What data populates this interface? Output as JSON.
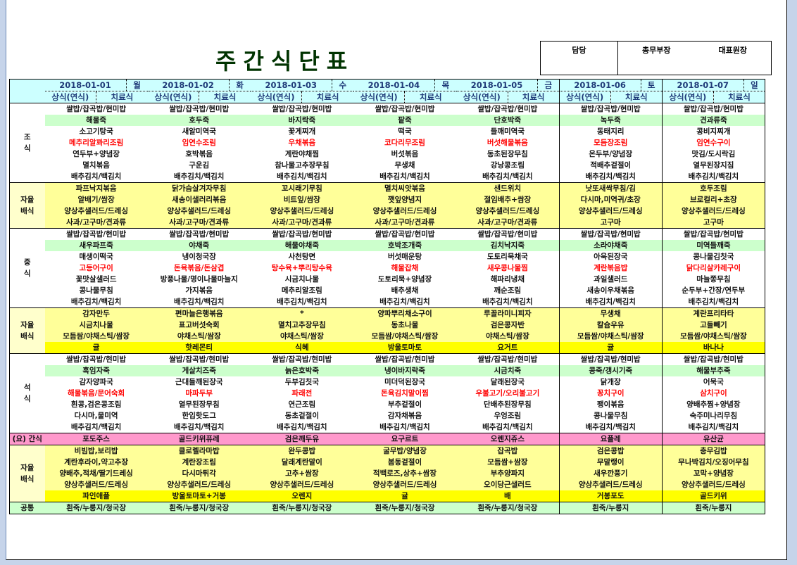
{
  "title": "주간식단표",
  "approval": {
    "labels": [
      "담당",
      "총무부장",
      "대표원장"
    ]
  },
  "colors": {
    "header": "#ccffff",
    "porridge": "#ccffcc",
    "self_serve": "#ffff99",
    "fruit": "#ffff00",
    "night_snack": "#ff99cc",
    "common": "#ccffcc",
    "main_dish_text": "#ff0000",
    "title": "#003300"
  },
  "days": [
    {
      "date": "2018-01-01",
      "weekday": "월"
    },
    {
      "date": "2018-01-02",
      "weekday": "화"
    },
    {
      "date": "2018-01-03",
      "weekday": "수"
    },
    {
      "date": "2018-01-04",
      "weekday": "목"
    },
    {
      "date": "2018-01-05",
      "weekday": "금"
    },
    {
      "date": "2018-01-06",
      "weekday": "토"
    },
    {
      "date": "2018-01-07",
      "weekday": "일"
    }
  ],
  "subheaders": [
    "상식(연식)",
    "치료식"
  ],
  "sections": [
    {
      "label": [
        "조",
        "식"
      ],
      "kind": "meal",
      "row_types": [
        "plain",
        "porridge",
        "plain",
        "main",
        "plain",
        "plain",
        "plain"
      ],
      "rows": [
        [
          "쌀밥/잡곡밥/현미밥",
          "쌀밥/잡곡밥/현미밥",
          "쌀밥/잡곡밥/현미밥",
          "쌀밥/잡곡밥/현미밥",
          "쌀밥/잡곡밥/현미밥",
          "쌀밥/잡곡밥/현미밥",
          "쌀밥/잡곡밥/현미밥"
        ],
        [
          "해물죽",
          "호두죽",
          "바지락죽",
          "팥죽",
          "단호박죽",
          "녹두죽",
          "견과류죽"
        ],
        [
          "소고기탕국",
          "새알미역국",
          "꽃게찌개",
          "떡국",
          "들깨미역국",
          "동태지리",
          "콩비지찌개"
        ],
        [
          "메추리알꽈리조림",
          "임연수조림",
          "우채볶음",
          "코다리무조림",
          "버섯해물볶음",
          "모듬장조림",
          "임연수구이"
        ],
        [
          "연두부+양념장",
          "호박볶음",
          "계란야채찜",
          "버섯볶음",
          "동초된장무침",
          "온두부/양념장",
          "맛김/도시락김"
        ],
        [
          "멸치볶음",
          "구운김",
          "참나물고추장무침",
          "무생채",
          "강낭콩조림",
          "적배추겉절이",
          "열무된장지짐"
        ],
        [
          "배추김치/백김치",
          "배추김치/백김치",
          "배추김치/백김치",
          "배추김치/백김치",
          "배추김치/백김치",
          "배추김치/백김치",
          "배추김치/백김치"
        ]
      ]
    },
    {
      "label": [
        "자율",
        "배식"
      ],
      "kind": "self",
      "row_types": [
        "self",
        "self",
        "self",
        "self"
      ],
      "rows": [
        [
          "파프낙지볶음",
          "닭가슴살겨자무침",
          "꼬시래기무침",
          "멸치씨앗볶음",
          "샌드위치",
          "낫또새싹무침/김",
          "호두조림"
        ],
        [
          "알배기/쌈장",
          "새송이샐러리볶음",
          "비트잎/쌈장",
          "깻잎양념지",
          "절임배추+쌈장",
          "다시마,미역귀/초장",
          "브로컬리+초장"
        ],
        [
          "양상추샐러드/드레싱",
          "양상추샐러드/드레싱",
          "양상추샐러드/드레싱",
          "양상추샐러드/드레싱",
          "양상추샐러드/드레싱",
          "양상추샐러드/드레싱",
          "양상추샐러드/드레싱"
        ],
        [
          "사과/고구마/견과류",
          "사과/고구마/견과류",
          "사과/고구마/견과류",
          "사과/고구마/견과류",
          "사과/고구마/견과류",
          "고구마",
          "고구마"
        ]
      ]
    },
    {
      "label": [
        "중",
        "식"
      ],
      "kind": "meal",
      "row_types": [
        "plain",
        "porridge",
        "plain",
        "main",
        "plain",
        "plain",
        "plain"
      ],
      "rows": [
        [
          "쌀밥/잡곡밥/현미밥",
          "쌀밥/잡곡밥/현미밥",
          "쌀밥/잡곡밥/현미밥",
          "쌀밥/잡곡밥/현미밥",
          "쌀밥/잡곡밥/현미밥",
          "쌀밥/잡곡밥/현미밥",
          "쌀밥/잡곡밥/현미밥"
        ],
        [
          "새우파프죽",
          "야채죽",
          "해물야채죽",
          "호박조개죽",
          "김치낙지죽",
          "소라야채죽",
          "미역들깨죽"
        ],
        [
          "매생이떡국",
          "냉이청국장",
          "사천탕면",
          "버섯매운탕",
          "도토리묵채국",
          "아욱된장국",
          "콩나물김칫국"
        ],
        [
          "고등어구이",
          "돈육볶음/돈삼겹",
          "탕수육+뿌리탕수육",
          "해물잡채",
          "새우콩나물찜",
          "계란볶음밥",
          "닭다리살카레구이"
        ],
        [
          "꽃맛살샐러드",
          "방풍나물/명이나물마늘지",
          "시금치나물",
          "도토리묵+양념장",
          "해파리냉채",
          "과일샐러드",
          "마늘쫑무침"
        ],
        [
          "콩나물무침",
          "가지볶음",
          "메추리알조림",
          "배추생채",
          "깨순조림",
          "새송이우채볶음",
          "순두부+간장/연두부"
        ],
        [
          "배추김치/백김치",
          "배추김치/백김치",
          "배추김치/백김치",
          "배추김치/백김치",
          "배추김치/백김치",
          "배추김치/백김치",
          "배추김치/백김치"
        ]
      ]
    },
    {
      "label": [
        "자율",
        "배식"
      ],
      "kind": "self",
      "row_types": [
        "self",
        "self",
        "self",
        "fruit"
      ],
      "rows": [
        [
          "감자만두",
          "편마늘은행볶음",
          "*",
          "양파뿌리채소구이",
          "루꼴라미니피자",
          "무생채",
          "계란프리타타"
        ],
        [
          "시금치나물",
          "표고버섯숙회",
          "멸치고추장무침",
          "동초나물",
          "검은콩자반",
          "칼슘우유",
          "고들빼기"
        ],
        [
          "모듬쌈/야채스틱/쌈장",
          "야채스틱/쌈장",
          "야채스틱/쌈장",
          "모듬쌈/야채스틱/쌈장",
          "야채스틱/쌈장",
          "모듬쌈/야채스틱/쌈장",
          "모듬쌈/야채스틱/쌈장"
        ],
        [
          "귤",
          "핫레몬티",
          "식혜",
          "방울토마토",
          "요거트",
          "귤",
          "바나나"
        ]
      ]
    },
    {
      "label": [
        "석",
        "식"
      ],
      "kind": "meal",
      "row_types": [
        "plain",
        "porridge",
        "plain",
        "main",
        "plain",
        "plain",
        "plain"
      ],
      "rows": [
        [
          "쌀밥/잡곡밥/현미밥",
          "쌀밥/잡곡밥/현미밥",
          "쌀밥/잡곡밥/현미밥",
          "쌀밥/잡곡밥/현미밥",
          "쌀밥/잡곡밥/현미밥",
          "쌀밥/잡곡밥/현미밥",
          "쌀밥/잡곡밥/현미밥"
        ],
        [
          "흑임자죽",
          "게살치즈죽",
          "늙은호박죽",
          "냉이바지락죽",
          "시금치죽",
          "콩죽/갱시기죽",
          "해물부추죽"
        ],
        [
          "감자양파국",
          "근대들깨된장국",
          "두부김칫국",
          "미더덕된장국",
          "달래된장국",
          "닭개장",
          "어묵국"
        ],
        [
          "해물볶음/문어숙회",
          "마파두부",
          "파래전",
          "돈육김치말이찜",
          "우불고기/오리불고기",
          "꽁치구이",
          "삼치구이"
        ],
        [
          "흰콩,검은콩조림",
          "열무된장무침",
          "연근조림",
          "부추겉절이",
          "단배추된장무침",
          "팽이볶음",
          "양배추찜+양념장"
        ],
        [
          "다시마,물미역",
          "한입핫도그",
          "동초겉절이",
          "감자채볶음",
          "우엉조림",
          "콩나물무침",
          "숙주미나리무침"
        ],
        [
          "배추김치/백김치",
          "배추김치/백김치",
          "배추김치/백김치",
          "배추김치/백김치",
          "배추김치/백김치",
          "배추김치/백김치",
          "배추김치/백김치"
        ]
      ]
    },
    {
      "label": [
        "(요) 간식"
      ],
      "kind": "night",
      "row_types": [
        "night"
      ],
      "rows": [
        [
          "포도주스",
          "골드키위퓨레",
          "검은깨두유",
          "요구르트",
          "오렌지쥬스",
          "요플레",
          "유산균"
        ]
      ]
    },
    {
      "label": [
        "자율",
        "배식"
      ],
      "kind": "self",
      "row_types": [
        "self",
        "self",
        "self",
        "self",
        "fruit"
      ],
      "rows": [
        [
          "비빔밥,보리밥",
          "클로렐라마밥",
          "완두콩밥",
          "굴무밥/양념장",
          "잡곡밥",
          "검은콩밥",
          "충무김밥"
        ],
        [
          "계란후라이,약고추장",
          "계란장조림",
          "달래계란말이",
          "봄동겉절이",
          "모듬쌈+쌈장",
          "무말랭이",
          "무나박김치/오징어무침"
        ],
        [
          "양배추,적채/딸기드레싱",
          "다시마튀각",
          "고추+쌈장",
          "적백로즈,상추+쌈장",
          "부추양파지",
          "새우깐풍기",
          "꼬막+양념장"
        ],
        [
          "양상추샐러드/드레싱",
          "양상추샐러드/드레싱",
          "양상추샐러드/드레싱",
          "양상추샐러드/드레싱",
          "오이당근샐러드",
          "양상추샐러드/드레싱",
          "양상추샐러드/드레싱"
        ],
        [
          "파인애플",
          "방울토마토+거봉",
          "오렌지",
          "귤",
          "배",
          "거봉포도",
          "골드키위"
        ]
      ]
    },
    {
      "label": [
        "공통"
      ],
      "kind": "common",
      "row_types": [
        "common"
      ],
      "rows": [
        [
          "흰죽/누룽지/청국장",
          "흰죽/누룽지/청국장",
          "흰죽/누룽지/청국장",
          "흰죽/누룽지/청국장",
          "흰죽/누룽지/청국장",
          "흰죽/누룽지",
          "흰죽/누룽지"
        ]
      ]
    }
  ]
}
